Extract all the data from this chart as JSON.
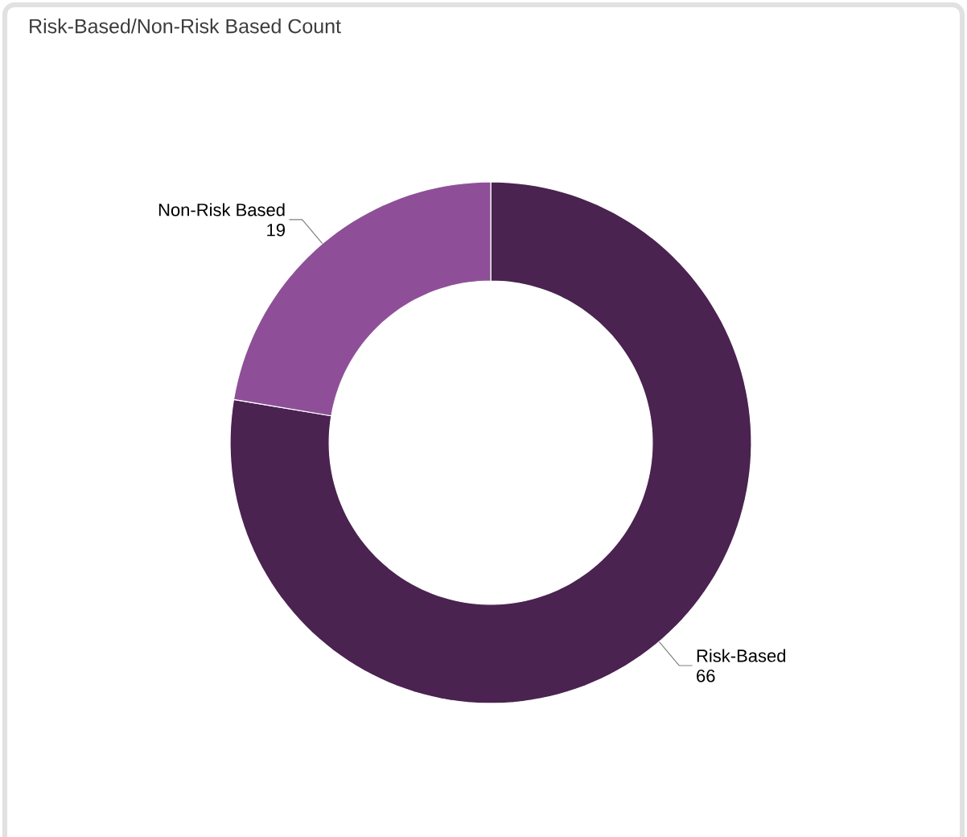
{
  "chart_data": {
    "type": "donut",
    "title": "Risk-Based/Non-Risk Based Count",
    "categories": [
      "Risk-Based",
      "Non-Risk Based"
    ],
    "values": [
      66,
      19
    ],
    "colors": [
      "#4a2350",
      "#8e4f98"
    ],
    "data_labels": true
  }
}
